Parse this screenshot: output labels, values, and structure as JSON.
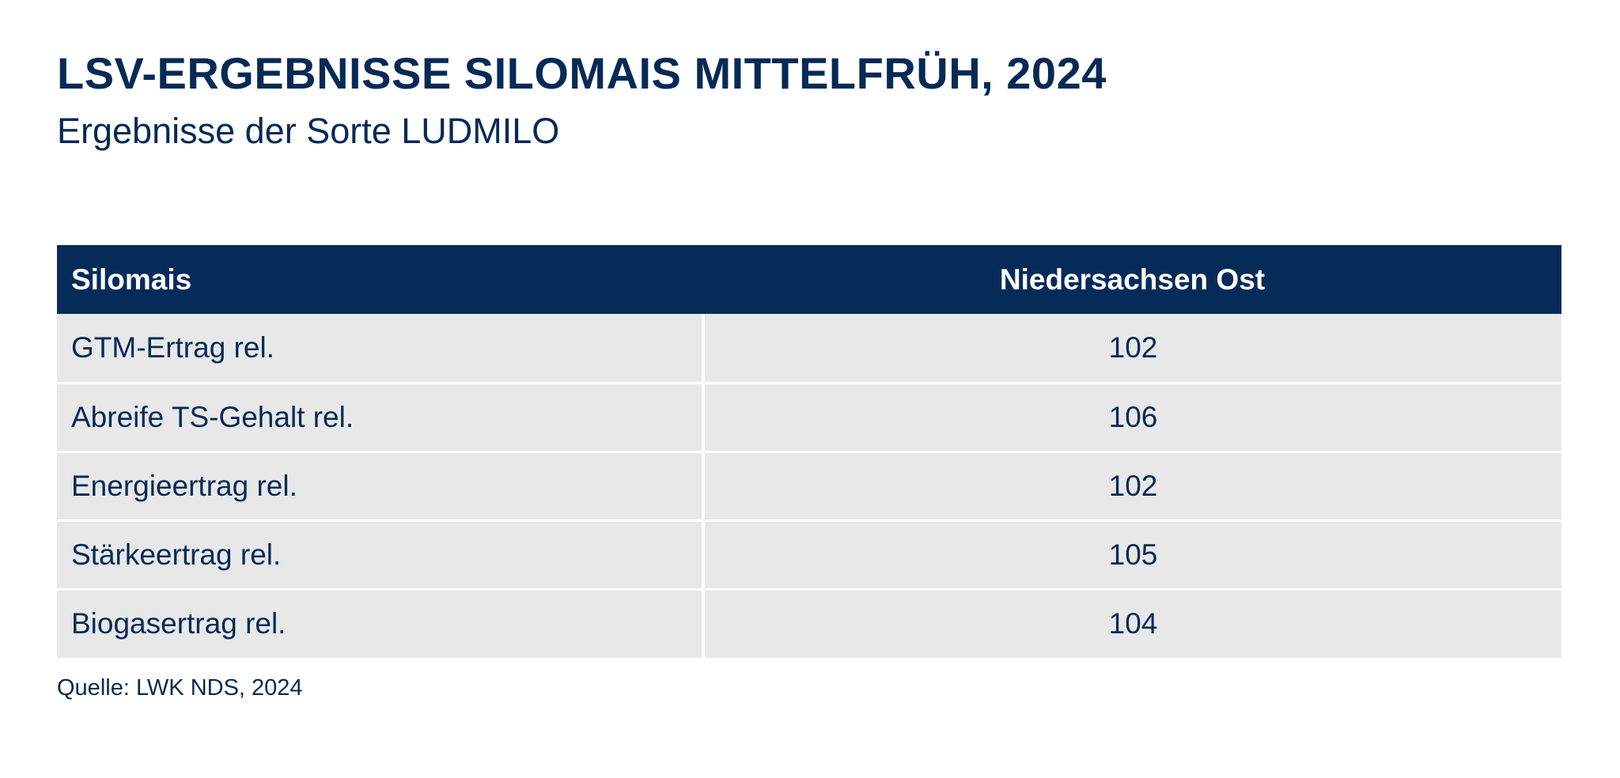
{
  "header": {
    "title": "LSV-ERGEBNISSE SILOMAIS MITTELFRÜH, 2024",
    "subtitle": "Ergebnisse der Sorte LUDMILO"
  },
  "chart_data": {
    "type": "table",
    "title": "LSV-ERGEBNISSE SILOMAIS MITTELFRÜH, 2024",
    "subtitle": "Ergebnisse der Sorte LUDMILO",
    "columns": [
      "Silomais",
      "Niedersachsen Ost"
    ],
    "rows": [
      {
        "label": "GTM-Ertrag rel.",
        "value": "102"
      },
      {
        "label": "Abreife TS-Gehalt rel.",
        "value": "106"
      },
      {
        "label": "Energieertrag rel.",
        "value": "102"
      },
      {
        "label": "Stärkeertrag rel.",
        "value": "105"
      },
      {
        "label": "Biogasertrag rel.",
        "value": "104"
      }
    ],
    "source": "Quelle: LWK NDS, 2024"
  },
  "colors": {
    "header_bg": "#062b59",
    "row_bg": "#e8e8e9",
    "text": "#052a55"
  }
}
